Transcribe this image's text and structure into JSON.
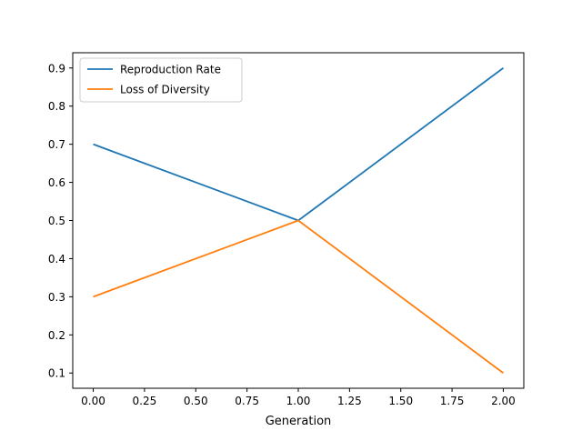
{
  "chart_data": {
    "type": "line",
    "title": "",
    "xlabel": "Generation",
    "ylabel": "",
    "xlim": [
      -0.1,
      2.1
    ],
    "ylim": [
      0.06,
      0.94
    ],
    "x": [
      0,
      1,
      2
    ],
    "xticks": [
      0.0,
      0.25,
      0.5,
      0.75,
      1.0,
      1.25,
      1.5,
      1.75,
      2.0
    ],
    "xtick_labels": [
      "0.00",
      "0.25",
      "0.50",
      "0.75",
      "1.00",
      "1.25",
      "1.50",
      "1.75",
      "2.00"
    ],
    "yticks": [
      0.1,
      0.2,
      0.3,
      0.4,
      0.5,
      0.6,
      0.7,
      0.8,
      0.9
    ],
    "ytick_labels": [
      "0.1",
      "0.2",
      "0.3",
      "0.4",
      "0.5",
      "0.6",
      "0.7",
      "0.8",
      "0.9"
    ],
    "grid": false,
    "legend_position": "upper-left",
    "series": [
      {
        "name": "Reproduction Rate",
        "values": [
          0.7,
          0.5,
          0.9
        ],
        "color": "#1f77b4"
      },
      {
        "name": "Loss of Diversity",
        "values": [
          0.3,
          0.5,
          0.1
        ],
        "color": "#ff7f0e"
      }
    ]
  }
}
